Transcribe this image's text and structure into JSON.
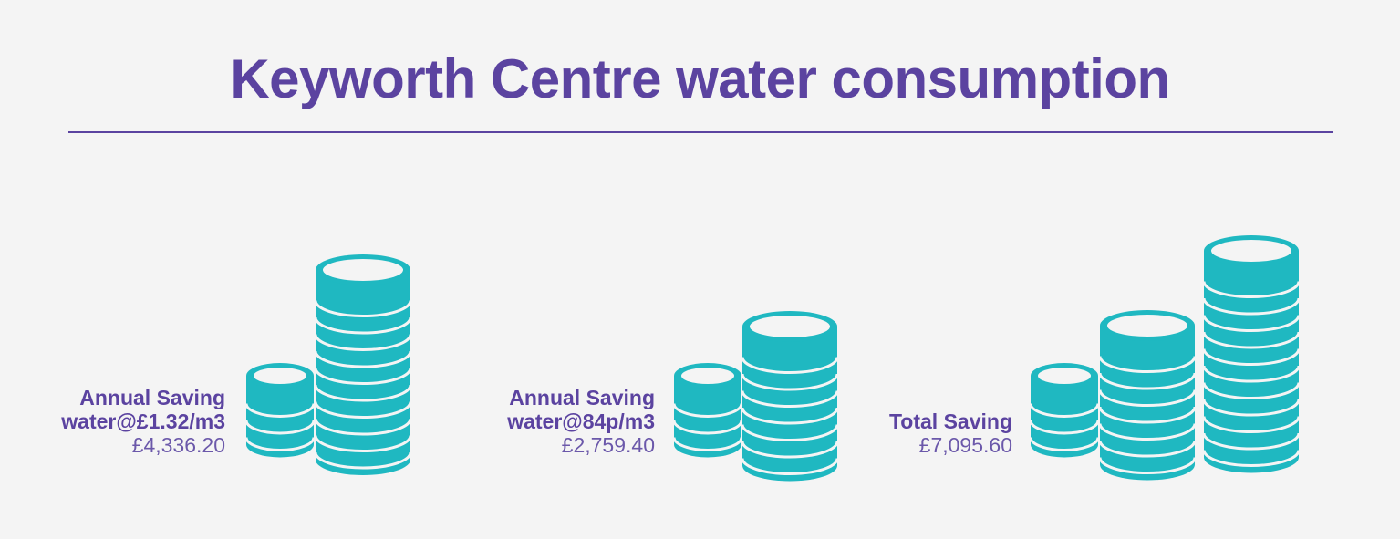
{
  "title": "Keyworth Centre water consumption",
  "colors": {
    "accent": "#5b43a0",
    "coin": "#1fb8c1",
    "background": "#f4f4f4"
  },
  "panels": [
    {
      "line1": "Annual Saving",
      "line2": "water@£1.32/m3",
      "amount": "£4,336.20",
      "icon": "coin-stack-icon"
    },
    {
      "line1": "Annual Saving",
      "line2": "water@84p/m3",
      "amount": "£2,759.40",
      "icon": "coin-stack-icon"
    },
    {
      "line1": "Total Saving",
      "line2": "",
      "amount": "£7,095.60",
      "icon": "coin-stack-icon"
    }
  ]
}
